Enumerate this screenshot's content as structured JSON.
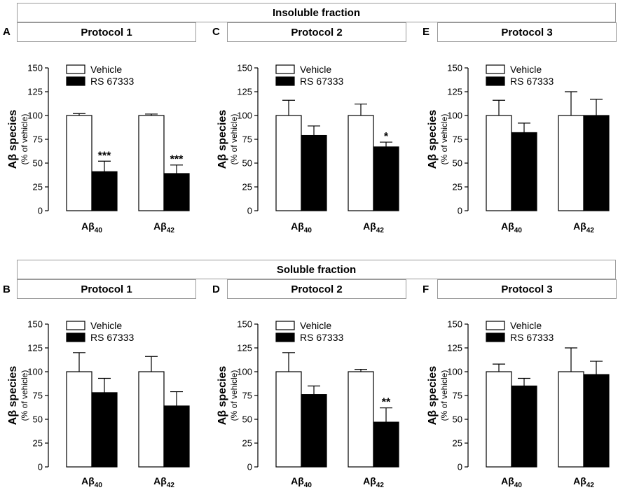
{
  "figure": {
    "insoluble_title": "Insoluble fraction",
    "soluble_title": "Soluble fraction"
  },
  "colors": {
    "vehicle": "#ffffff",
    "treatment": "#000000",
    "stroke": "#000000",
    "box_border": "#9a9a9a"
  },
  "chart_data": [
    {
      "panel": "A",
      "fraction": "Insoluble fraction",
      "protocol": "Protocol 1",
      "type": "bar",
      "categories": [
        "Aβ40",
        "Aβ42"
      ],
      "category_labels": [
        {
          "main": "Aβ",
          "sub": "40"
        },
        {
          "main": "Aβ",
          "sub": "42"
        }
      ],
      "series": [
        {
          "name": "Vehicle",
          "values": [
            100,
            100
          ],
          "errors": [
            2,
            1.5
          ]
        },
        {
          "name": "RS 67333",
          "values": [
            41,
            39
          ],
          "errors": [
            11,
            9
          ]
        }
      ],
      "annotations": [
        {
          "series": 1,
          "category": 0,
          "text": "***"
        },
        {
          "series": 1,
          "category": 1,
          "text": "***"
        }
      ],
      "ylabel_main": "Aβ species",
      "ylabel_sub": "(% of vehicle)",
      "ylim": [
        0,
        150
      ],
      "yticks": [
        0,
        25,
        50,
        75,
        100,
        125,
        150
      ],
      "legend": "top-left"
    },
    {
      "panel": "C",
      "fraction": "Insoluble fraction",
      "protocol": "Protocol 2",
      "type": "bar",
      "categories": [
        "Aβ40",
        "Aβ42"
      ],
      "category_labels": [
        {
          "main": "Aβ",
          "sub": "40"
        },
        {
          "main": "Aβ",
          "sub": "42"
        }
      ],
      "series": [
        {
          "name": "Vehicle",
          "values": [
            100,
            100
          ],
          "errors": [
            16,
            12
          ]
        },
        {
          "name": "RS 67333",
          "values": [
            79,
            67
          ],
          "errors": [
            10,
            5
          ]
        }
      ],
      "annotations": [
        {
          "series": 1,
          "category": 1,
          "text": "*"
        }
      ],
      "ylabel_main": "Aβ species",
      "ylabel_sub": "(% of vehicle)",
      "ylim": [
        0,
        150
      ],
      "yticks": [
        0,
        25,
        50,
        75,
        100,
        125,
        150
      ],
      "legend": "top-left"
    },
    {
      "panel": "E",
      "fraction": "Insoluble fraction",
      "protocol": "Protocol 3",
      "type": "bar",
      "categories": [
        "Aβ40",
        "Aβ42"
      ],
      "category_labels": [
        {
          "main": "Aβ",
          "sub": "40"
        },
        {
          "main": "Aβ",
          "sub": "42"
        }
      ],
      "series": [
        {
          "name": "Vehicle",
          "values": [
            100,
            100
          ],
          "errors": [
            16,
            25
          ]
        },
        {
          "name": "RS 67333",
          "values": [
            82,
            100
          ],
          "errors": [
            10,
            17
          ]
        }
      ],
      "annotations": [],
      "ylabel_main": "Aβ species",
      "ylabel_sub": "(% of vehicle)",
      "ylim": [
        0,
        150
      ],
      "yticks": [
        0,
        25,
        50,
        75,
        100,
        125,
        150
      ],
      "legend": "top-left"
    },
    {
      "panel": "B",
      "fraction": "Soluble fraction",
      "protocol": "Protocol 1",
      "type": "bar",
      "categories": [
        "Aβ40",
        "Aβ42"
      ],
      "category_labels": [
        {
          "main": "Aβ",
          "sub": "40"
        },
        {
          "main": "Aβ",
          "sub": "42"
        }
      ],
      "series": [
        {
          "name": "Vehicle",
          "values": [
            100,
            100
          ],
          "errors": [
            20,
            16
          ]
        },
        {
          "name": "RS 67333",
          "values": [
            78,
            64
          ],
          "errors": [
            15,
            15
          ]
        }
      ],
      "annotations": [],
      "ylabel_main": "Aβ species",
      "ylabel_sub": "(% of vehicle)",
      "ylim": [
        0,
        150
      ],
      "yticks": [
        0,
        25,
        50,
        75,
        100,
        125,
        150
      ],
      "legend": "top-left"
    },
    {
      "panel": "D",
      "fraction": "Soluble fraction",
      "protocol": "Protocol 2",
      "type": "bar",
      "categories": [
        "Aβ40",
        "Aβ42"
      ],
      "category_labels": [
        {
          "main": "Aβ",
          "sub": "40"
        },
        {
          "main": "Aβ",
          "sub": "42"
        }
      ],
      "series": [
        {
          "name": "Vehicle",
          "values": [
            100,
            100
          ],
          "errors": [
            20,
            2.5
          ]
        },
        {
          "name": "RS 67333",
          "values": [
            76,
            47
          ],
          "errors": [
            9,
            15
          ]
        }
      ],
      "annotations": [
        {
          "series": 1,
          "category": 1,
          "text": "**"
        }
      ],
      "ylabel_main": "Aβ species",
      "ylabel_sub": "(% of vehicle)",
      "ylim": [
        0,
        150
      ],
      "yticks": [
        0,
        25,
        50,
        75,
        100,
        125,
        150
      ],
      "legend": "top-left"
    },
    {
      "panel": "F",
      "fraction": "Soluble fraction",
      "protocol": "Protocol 3",
      "type": "bar",
      "categories": [
        "Aβ40",
        "Aβ42"
      ],
      "category_labels": [
        {
          "main": "Aβ",
          "sub": "40"
        },
        {
          "main": "Aβ",
          "sub": "42"
        }
      ],
      "series": [
        {
          "name": "Vehicle",
          "values": [
            100,
            100
          ],
          "errors": [
            8,
            25
          ]
        },
        {
          "name": "RS 67333",
          "values": [
            85,
            97
          ],
          "errors": [
            8,
            14
          ]
        }
      ],
      "annotations": [],
      "ylabel_main": "Aβ species",
      "ylabel_sub": "(% of vehicle)",
      "ylim": [
        0,
        150
      ],
      "yticks": [
        0,
        25,
        50,
        75,
        100,
        125,
        150
      ],
      "legend": "top-left"
    }
  ]
}
